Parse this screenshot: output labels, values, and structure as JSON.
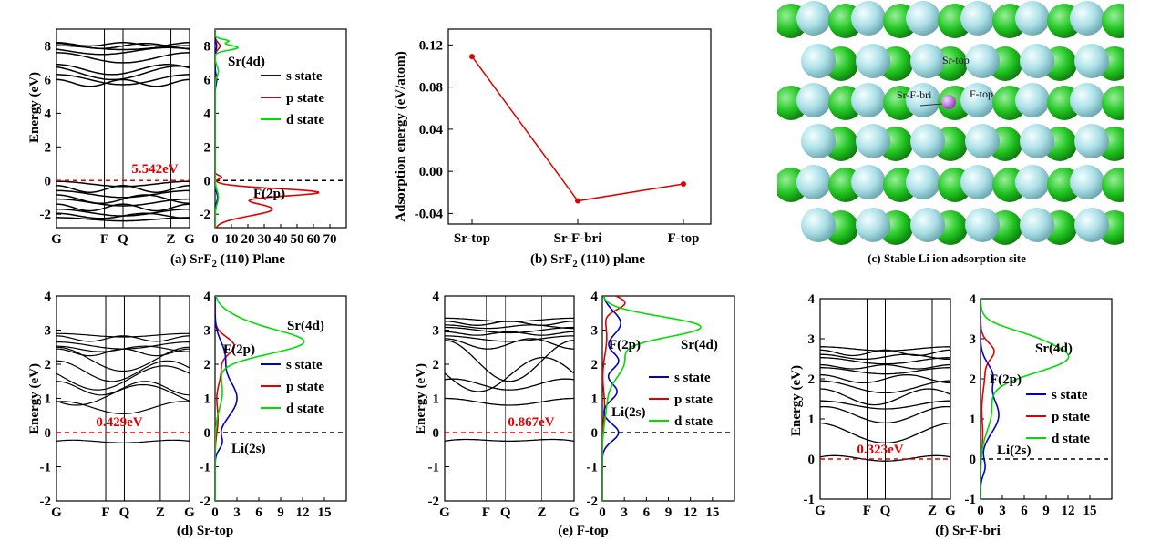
{
  "colors": {
    "s": "#0000cc",
    "p": "#e00000",
    "d": "#00dd00",
    "fermi": "#000000",
    "gap": "#e00000",
    "line": "#e00000",
    "f_atom": "#aadfe6",
    "sr_atom": "#23c623",
    "li_atom": "#c080e0"
  },
  "chart_data": [
    {
      "id": "a",
      "type": "line",
      "subtype": "band-structure",
      "caption_prefix": "(a) SrF",
      "caption_sub": "2",
      "caption_suffix": " (110) Plane",
      "ylabel": "Energy (eV)",
      "ylim": [
        -2.8,
        9
      ],
      "yticks": [
        "-2",
        "0",
        "2",
        "4",
        "6",
        "8"
      ],
      "ytick_values": [
        -2,
        0,
        2,
        4,
        6,
        8
      ],
      "kpoints": [
        "G",
        "F",
        "Q",
        "Z",
        "G"
      ],
      "kpoint_positions": [
        0,
        0.36,
        0.5,
        0.86,
        1
      ],
      "band_gap_label": "5.542eV",
      "band_gap": 5.542,
      "dos": {
        "xticks": [
          "0",
          "10",
          "20",
          "30",
          "40",
          "50",
          "60",
          "70"
        ],
        "xtick_values": [
          0,
          10,
          20,
          30,
          40,
          50,
          60,
          70
        ],
        "xlim": [
          0,
          80
        ],
        "legend": [
          "s state",
          "p state",
          "d state"
        ],
        "annotations": [
          "Sr(4d)",
          "F(2p)"
        ]
      }
    },
    {
      "id": "b",
      "type": "line",
      "caption_prefix": "(b) SrF",
      "caption_sub": "2",
      "caption_suffix": " (110) plane",
      "ylabel": "Adsorption energy (eV/atom)",
      "categories": [
        "Sr-top",
        "Sr-F-bri",
        "F-top"
      ],
      "values": [
        0.109,
        -0.028,
        -0.012
      ],
      "ylim": [
        -0.05,
        0.135
      ],
      "yticks": [
        "-0.04",
        "0.00",
        "0.04",
        "0.08",
        "0.12"
      ],
      "ytick_values": [
        -0.04,
        0,
        0.04,
        0.08,
        0.12
      ]
    },
    {
      "id": "d",
      "type": "line",
      "subtype": "band-structure",
      "caption": "(d) Sr-top",
      "ylabel": "Energy (eV)",
      "ylim": [
        -2,
        4
      ],
      "yticks": [
        "-2",
        "-1",
        "0",
        "1",
        "2",
        "3",
        "4"
      ],
      "ytick_values": [
        -2,
        -1,
        0,
        1,
        2,
        3,
        4
      ],
      "kpoints": [
        "G",
        "F",
        "Q",
        "Z",
        "G"
      ],
      "kpoint_positions": [
        0,
        0.37,
        0.51,
        0.78,
        1
      ],
      "band_gap_label": "0.429eV",
      "band_gap": 0.429,
      "dos": {
        "xticks": [
          "0",
          "3",
          "6",
          "9",
          "12",
          "15"
        ],
        "xtick_values": [
          0,
          3,
          6,
          9,
          12,
          15
        ],
        "xlim": [
          0,
          18
        ],
        "legend": [
          "s state",
          "p state",
          "d state"
        ],
        "annotations": [
          "Sr(4d)",
          "F(2p)",
          "Li(2s)"
        ]
      }
    },
    {
      "id": "e",
      "type": "line",
      "subtype": "band-structure",
      "caption": "(e) F-top",
      "ylabel": "Energy (eV)",
      "ylim": [
        -2,
        4
      ],
      "yticks": [
        "-2",
        "-1",
        "0",
        "1",
        "2",
        "3",
        "4"
      ],
      "ytick_values": [
        -2,
        -1,
        0,
        1,
        2,
        3,
        4
      ],
      "kpoints": [
        "G",
        "F",
        "Q",
        "Z",
        "G"
      ],
      "kpoint_positions": [
        0,
        0.32,
        0.47,
        0.75,
        1
      ],
      "band_gap_label": "0.867eV",
      "band_gap": 0.867,
      "dos": {
        "xticks": [
          "0",
          "3",
          "6",
          "9",
          "12",
          "15"
        ],
        "xtick_values": [
          0,
          3,
          6,
          9,
          12,
          15
        ],
        "xlim": [
          0,
          18
        ],
        "legend": [
          "s state",
          "p state",
          "d state"
        ],
        "annotations": [
          "Sr(4d)",
          "F(2p)",
          "Li(2s)"
        ]
      }
    },
    {
      "id": "f",
      "type": "line",
      "subtype": "band-structure",
      "caption": "(f) Sr-F-bri",
      "ylabel": "Energy (eV)",
      "ylim": [
        -1,
        4
      ],
      "yticks": [
        "-1",
        "0",
        "1",
        "2",
        "3",
        "4"
      ],
      "ytick_values": [
        -1,
        0,
        1,
        2,
        3,
        4
      ],
      "kpoints": [
        "G",
        "F",
        "Q",
        "Z",
        "G"
      ],
      "kpoint_positions": [
        0,
        0.36,
        0.5,
        0.86,
        1
      ],
      "band_gap_label": "0.323eV",
      "band_gap": 0.323,
      "dos": {
        "xticks": [
          "0",
          "3",
          "6",
          "9",
          "12",
          "15"
        ],
        "xtick_values": [
          0,
          3,
          6,
          9,
          12,
          15
        ],
        "xlim": [
          0,
          18
        ],
        "legend": [
          "s state",
          "p state",
          "d state"
        ],
        "annotations": [
          "Sr(4d)",
          "F(2p)",
          "Li(2s)"
        ]
      }
    }
  ],
  "structure": {
    "caption": "(c) Stable Li ion adsorption site",
    "sites": [
      "Sr-top",
      "Sr-F-bri",
      "F-top"
    ]
  }
}
